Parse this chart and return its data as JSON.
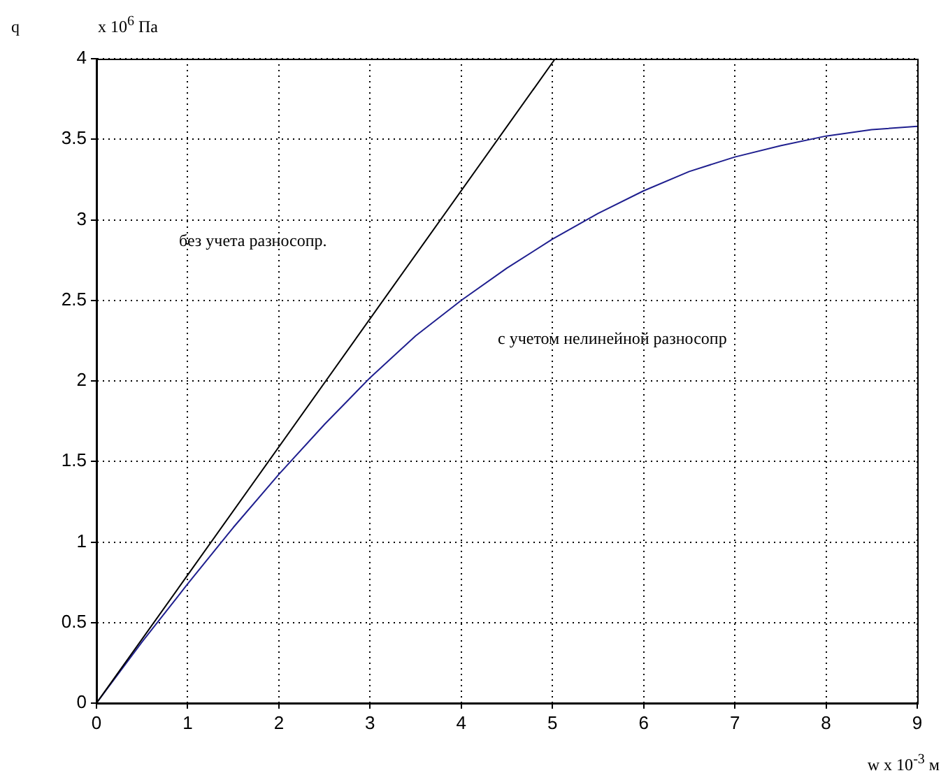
{
  "chart_data": {
    "type": "line",
    "xlabel": "w x 10$^{-3}$ м",
    "ylabel": "q",
    "xlim": [
      0,
      9
    ],
    "xticks": [
      0,
      1,
      2,
      3,
      4,
      5,
      6,
      7,
      8,
      9
    ],
    "ylim": [
      0,
      4
    ],
    "yticks": [
      0,
      0.5,
      1,
      1.5,
      2,
      2.5,
      3,
      3.5,
      4
    ],
    "grid": true,
    "legend": false,
    "marker": "none",
    "line_style": "solid",
    "series": [
      {
        "color": "#000000",
        "x": [
          0,
          5.03
        ],
        "values": [
          0,
          4
        ]
      },
      {
        "color": "#1f1f8f",
        "x": [
          0,
          0.5,
          1,
          1.5,
          2,
          2.5,
          3,
          3.5,
          4,
          4.5,
          5,
          5.5,
          6,
          6.5,
          7,
          7.5,
          8,
          8.5,
          9
        ],
        "values": [
          0,
          0.38,
          0.74,
          1.09,
          1.42,
          1.73,
          2.02,
          2.28,
          2.5,
          2.7,
          2.88,
          3.04,
          3.18,
          3.3,
          3.39,
          3.46,
          3.52,
          3.56,
          3.58
        ]
      }
    ],
    "annotations": [
      "x 10$^{6}$ Па",
      "без учета разносопр.",
      "с учетом нелинейной разносопр"
    ]
  }
}
